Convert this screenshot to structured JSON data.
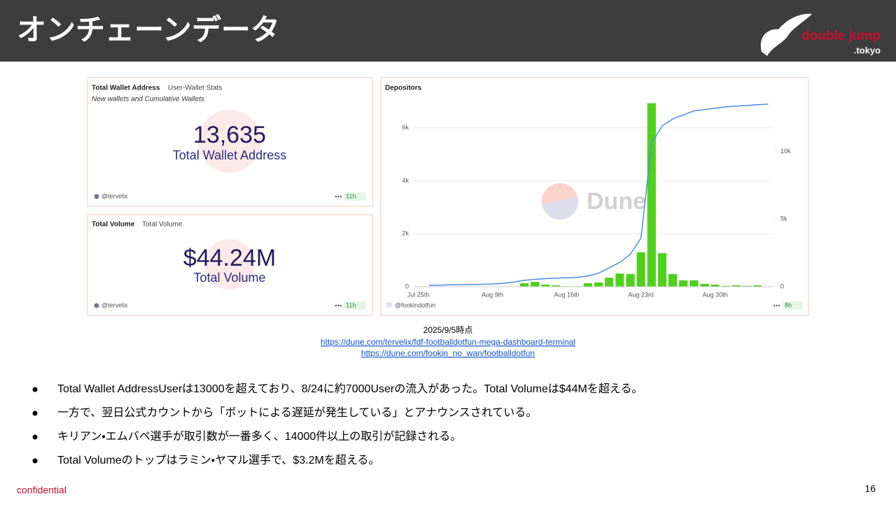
{
  "header": {
    "title": "オンチェーンデータ",
    "logo": {
      "name": "double jump",
      "suffix": ".tokyo"
    }
  },
  "panels": [
    {
      "title": "Total Wallet Address",
      "subtitle": "User-Wallet Stats",
      "description": "New wallets and Cumulative Wallets",
      "value": "13,635",
      "label": "Total Wallet Address",
      "author": "@tervelix",
      "age": "11h"
    },
    {
      "title": "Total Volume",
      "subtitle": "Total Volume",
      "value": "$44.24M",
      "label": "Total Volume",
      "author": "@tervelix",
      "age": "11h"
    }
  ],
  "chart_data": {
    "type": "combo",
    "title": "Depositors",
    "watermark": "Dune",
    "author": "@fookindotfun",
    "age": "8h",
    "categories": [
      "Jul 25th",
      null,
      null,
      null,
      null,
      null,
      null,
      "Aug 9th",
      null,
      null,
      null,
      null,
      null,
      null,
      "Aug 16th",
      null,
      null,
      null,
      null,
      null,
      null,
      "Aug 23rd",
      null,
      null,
      null,
      null,
      null,
      null,
      "Aug 30th",
      null,
      null,
      null,
      null,
      null
    ],
    "series": [
      {
        "type": "bar",
        "color": "#4fd01c",
        "values": [
          0,
          0,
          0,
          0,
          0,
          0,
          0,
          0,
          0,
          0,
          130,
          185,
          80,
          50,
          20,
          20,
          130,
          160,
          340,
          500,
          480,
          1300,
          6930,
          1270,
          480,
          240,
          240,
          110,
          80,
          30,
          50,
          30,
          50,
          10
        ]
      },
      {
        "type": "line",
        "color": "#4a8fe0",
        "axis": "y2",
        "values": [
          null,
          100,
          120,
          140,
          150,
          160,
          180,
          200,
          250,
          350,
          470,
          550,
          600,
          630,
          660,
          700,
          800,
          1000,
          1400,
          1800,
          2400,
          3600,
          10600,
          11900,
          12400,
          12700,
          13000,
          13100,
          13200,
          13300,
          13350,
          13400,
          13450,
          13500
        ]
      }
    ],
    "ylim": [
      0,
      7000
    ],
    "yticks": [
      0,
      {
        "value": 2000,
        "label": "2k"
      },
      {
        "value": 4000,
        "label": "4k"
      },
      {
        "value": 6000,
        "label": "6k"
      }
    ],
    "y2lim": [
      0,
      13700
    ],
    "y2ticks": [
      0,
      {
        "value": 5000,
        "label": "5k"
      },
      {
        "value": 10000,
        "label": "10k"
      }
    ],
    "grid": true
  },
  "caption": {
    "date": "2025/9/5時点",
    "links": [
      "https://dune.com/tervelix/fdf-footballdotfun-mega-dashboard-terminal",
      "https://dune.com/fookin_no_wan/footballdotfun"
    ]
  },
  "bullets": [
    "Total Wallet AddressUserは13000を超えており、8/24に約7000Userの流入があった。Total Volumeは$44Mを超える。",
    "一方で、翌日公式カウントから「ボットによる遅延が発生している」とアナウンスされている。",
    "キリアン・エムバペ選手が取引数が一番多く、14000件以上の取引が記録される。",
    "Total Volumeのトップはラミン・ヤマル選手で、$3.2Mを超える。"
  ],
  "footer": {
    "confidential": "confidential",
    "page": "16"
  }
}
